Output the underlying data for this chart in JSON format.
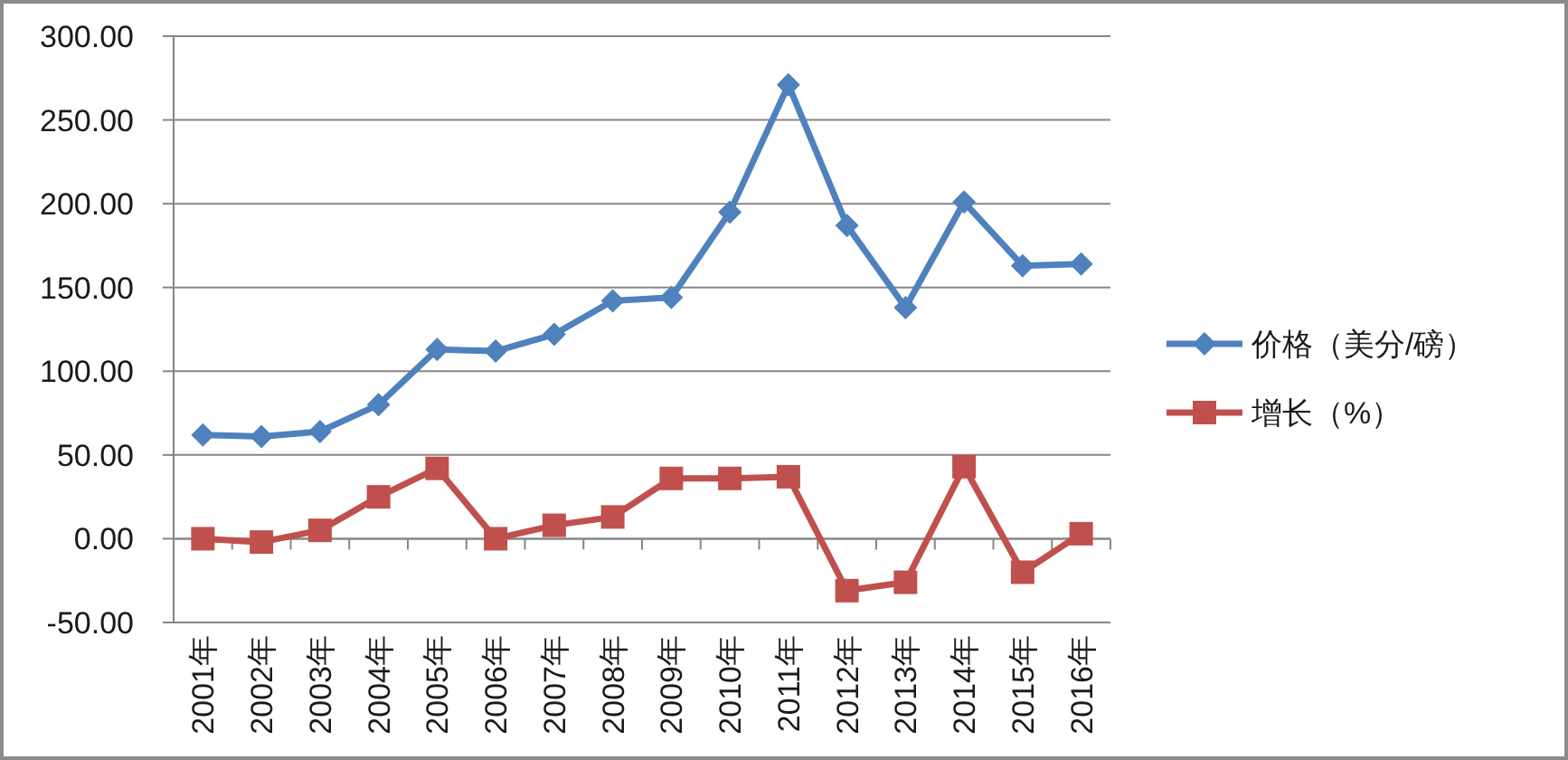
{
  "chart_data": {
    "type": "line",
    "categories": [
      "2001年",
      "2002年",
      "2003年",
      "2004年",
      "2005年",
      "2006年",
      "2007年",
      "2008年",
      "2009年",
      "2010年",
      "2011年",
      "2012年",
      "2013年",
      "2014年",
      "2015年",
      "2016年"
    ],
    "ylim": [
      -50,
      300
    ],
    "yticks": [
      {
        "value": -50,
        "label": "-50.00"
      },
      {
        "value": 0,
        "label": "0.00"
      },
      {
        "value": 50,
        "label": "50.00"
      },
      {
        "value": 100,
        "label": "100.00"
      },
      {
        "value": 150,
        "label": "150.00"
      },
      {
        "value": 200,
        "label": "200.00"
      },
      {
        "value": 250,
        "label": "250.00"
      },
      {
        "value": 300,
        "label": "300.00"
      }
    ],
    "grid": "y",
    "legend": "right",
    "line_style": "solid",
    "series": [
      {
        "name": "价格（美分/磅）",
        "color": "#4f81bd",
        "marker": "diamond",
        "values": [
          62,
          61,
          64,
          80,
          113,
          112,
          122,
          142,
          144,
          195,
          271,
          187,
          138,
          201,
          163,
          164
        ]
      },
      {
        "name": "增长（%）",
        "color": "#c0504d",
        "marker": "square",
        "values": [
          0,
          -2,
          5,
          25,
          42,
          0,
          8,
          13,
          36,
          36,
          37,
          -31,
          -26,
          43,
          -20,
          3
        ]
      }
    ]
  }
}
